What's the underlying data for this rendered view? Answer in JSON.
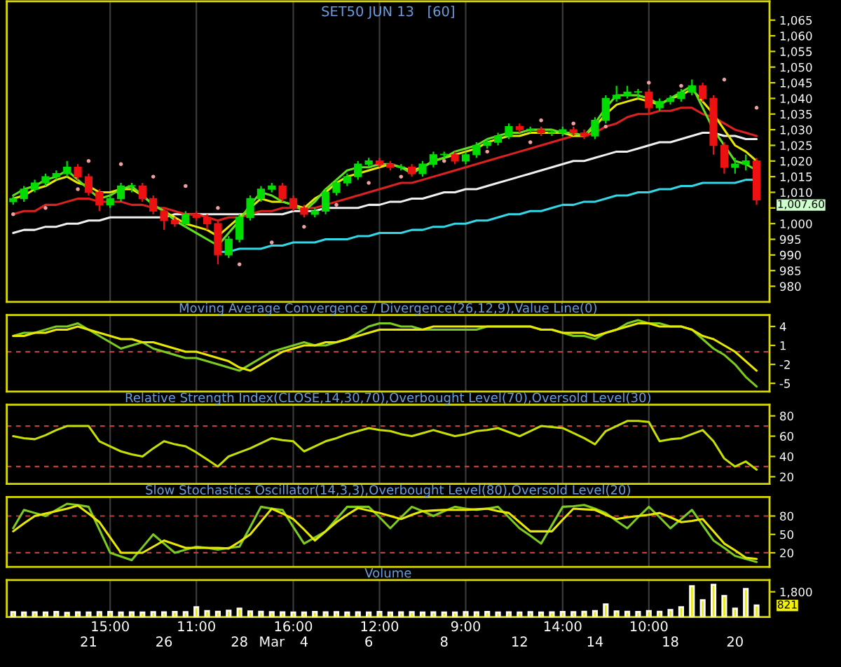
{
  "chart_data": [
    {
      "type": "candlestick",
      "title": "SET50 JUN 13   [60]",
      "categories": [
        null,
        null,
        null,
        null,
        null,
        null,
        null,
        null,
        null,
        null,
        null,
        null,
        null,
        null,
        null,
        null,
        null,
        null,
        null,
        null,
        null,
        null,
        null,
        null,
        null,
        null,
        null,
        null,
        null,
        null,
        null,
        null,
        null,
        null,
        null,
        null,
        null,
        null,
        null,
        null,
        null,
        null,
        null,
        null,
        null,
        null,
        null,
        null,
        null,
        null,
        null,
        null,
        null,
        null,
        null,
        null,
        null,
        null,
        null,
        null,
        null,
        null,
        null,
        null,
        null,
        null,
        null,
        null,
        null,
        null
      ],
      "ohlc": [
        [
          1007,
          1009,
          1006,
          1008
        ],
        [
          1008,
          1012,
          1007,
          1011
        ],
        [
          1011,
          1014,
          1010,
          1013
        ],
        [
          1013,
          1016,
          1012,
          1015
        ],
        [
          1015,
          1017,
          1014,
          1016
        ],
        [
          1016,
          1020,
          1015,
          1018
        ],
        [
          1018,
          1019,
          1014,
          1015
        ],
        [
          1015,
          1016,
          1009,
          1010
        ],
        [
          1010,
          1011,
          1004,
          1006
        ],
        [
          1006,
          1009,
          1005,
          1008
        ],
        [
          1008,
          1013,
          1007,
          1012
        ],
        [
          1012,
          1013,
          1010,
          1012
        ],
        [
          1012,
          1013,
          1007,
          1008
        ],
        [
          1008,
          1009,
          1003,
          1004
        ],
        [
          1004,
          1005,
          998,
          1001
        ],
        [
          1001,
          1002,
          999,
          1000
        ],
        [
          1000,
          1004,
          999,
          1003
        ],
        [
          1003,
          1004,
          1001,
          1002
        ],
        [
          1002,
          1003,
          998,
          1000
        ],
        [
          1000,
          1001,
          987,
          990
        ],
        [
          990,
          996,
          989,
          995
        ],
        [
          995,
          1003,
          994,
          1002
        ],
        [
          1002,
          1009,
          1001,
          1008
        ],
        [
          1008,
          1012,
          1007,
          1011
        ],
        [
          1011,
          1013,
          1010,
          1012
        ],
        [
          1012,
          1013,
          1007,
          1008
        ],
        [
          1008,
          1009,
          1004,
          1005
        ],
        [
          1005,
          1006,
          1002,
          1003
        ],
        [
          1003,
          1005,
          1002,
          1004
        ],
        [
          1004,
          1011,
          1003,
          1010
        ],
        [
          1010,
          1014,
          1009,
          1013
        ],
        [
          1013,
          1016,
          1012,
          1015
        ],
        [
          1015,
          1020,
          1014,
          1019
        ],
        [
          1019,
          1021,
          1018,
          1020
        ],
        [
          1020,
          1021,
          1018,
          1019
        ],
        [
          1019,
          1020,
          1017,
          1018
        ],
        [
          1018,
          1019,
          1017,
          1018
        ],
        [
          1018,
          1019,
          1015,
          1016
        ],
        [
          1016,
          1020,
          1015,
          1019
        ],
        [
          1019,
          1023,
          1018,
          1022
        ],
        [
          1022,
          1023,
          1021,
          1022
        ],
        [
          1022,
          1023,
          1019,
          1020
        ],
        [
          1020,
          1023,
          1019,
          1022
        ],
        [
          1022,
          1026,
          1021,
          1025
        ],
        [
          1025,
          1027,
          1024,
          1026
        ],
        [
          1026,
          1029,
          1025,
          1028
        ],
        [
          1028,
          1032,
          1027,
          1031
        ],
        [
          1031,
          1032,
          1029,
          1030
        ],
        [
          1030,
          1031,
          1029,
          1030
        ],
        [
          1030,
          1031,
          1028,
          1029
        ],
        [
          1029,
          1030,
          1028,
          1029
        ],
        [
          1029,
          1031,
          1028,
          1030
        ],
        [
          1030,
          1031,
          1028,
          1029
        ],
        [
          1029,
          1030,
          1027,
          1028
        ],
        [
          1028,
          1034,
          1027,
          1033
        ],
        [
          1033,
          1041,
          1032,
          1040
        ],
        [
          1040,
          1044,
          1039,
          1041
        ],
        [
          1041,
          1044,
          1040,
          1042
        ],
        [
          1042,
          1043,
          1040,
          1042
        ],
        [
          1042,
          1043,
          1035,
          1037
        ],
        [
          1037,
          1040,
          1036,
          1039
        ],
        [
          1039,
          1041,
          1038,
          1040
        ],
        [
          1040,
          1043,
          1039,
          1042
        ],
        [
          1042,
          1046,
          1041,
          1044
        ],
        [
          1044,
          1045,
          1039,
          1040
        ],
        [
          1040,
          1041,
          1022,
          1025
        ],
        [
          1025,
          1026,
          1016,
          1018
        ],
        [
          1018,
          1021,
          1016,
          1019
        ],
        [
          1019,
          1022,
          1017,
          1020
        ],
        [
          1020,
          1021,
          1006,
          1007.6
        ]
      ],
      "colors": [
        "#00dd00",
        "#00dd00",
        "#00dd00",
        "#00dd00",
        "#00dd00",
        "#00dd00",
        "#ee1111",
        "#ee1111",
        "#ee1111",
        "#00dd00",
        "#00dd00",
        "#00dd00",
        "#ee1111",
        "#ee1111",
        "#ee1111",
        "#ee1111",
        "#00dd00",
        "#ee1111",
        "#ee1111",
        "#ee1111",
        "#00dd00",
        "#00dd00",
        "#00dd00",
        "#00dd00",
        "#00dd00",
        "#ee1111",
        "#ee1111",
        "#ee1111",
        "#00dd00",
        "#00dd00",
        "#00dd00",
        "#00dd00",
        "#00dd00",
        "#00dd00",
        "#ee1111",
        "#ee1111",
        "#00dd00",
        "#ee1111",
        "#00dd00",
        "#00dd00",
        "#00dd00",
        "#ee1111",
        "#00dd00",
        "#00dd00",
        "#00dd00",
        "#00dd00",
        "#00dd00",
        "#ee1111",
        "#00dd00",
        "#ee1111",
        "#00dd00",
        "#00dd00",
        "#ee1111",
        "#ee1111",
        "#00dd00",
        "#00dd00",
        "#00dd00",
        "#00dd00",
        "#00dd00",
        "#ee1111",
        "#00dd00",
        "#00dd00",
        "#00dd00",
        "#00dd00",
        "#ee1111",
        "#ee1111",
        "#ee1111",
        "#00dd00",
        "#00dd00",
        "#ee1111"
      ],
      "series": [
        {
          "type": "line",
          "color": "#f0f0f0",
          "values": [
            997,
            998,
            998,
            999,
            999,
            1000,
            1000,
            1001,
            1001,
            1002,
            1002,
            1002,
            1002,
            1002,
            1002,
            1003,
            1003,
            1003,
            1003,
            1003,
            1003,
            1003,
            1003,
            1003,
            1003,
            1003,
            1004,
            1004,
            1004,
            1005,
            1005,
            1005,
            1005,
            1006,
            1006,
            1007,
            1007,
            1008,
            1008,
            1009,
            1010,
            1010,
            1011,
            1011,
            1012,
            1013,
            1014,
            1015,
            1016,
            1017,
            1018,
            1019,
            1020,
            1020,
            1021,
            1022,
            1023,
            1023,
            1024,
            1025,
            1026,
            1026,
            1027,
            1028,
            1029,
            1029,
            1028,
            1028,
            1027,
            1027
          ]
        },
        {
          "type": "line",
          "color": "#dd2020",
          "values": [
            1003,
            1004,
            1004,
            1006,
            1006,
            1007,
            1008,
            1008,
            1007,
            1007,
            1007,
            1006,
            1006,
            1005,
            1005,
            1004,
            1003,
            1003,
            1002,
            1001,
            1002,
            1002,
            1003,
            1004,
            1004,
            1005,
            1005,
            1005,
            1005,
            1006,
            1007,
            1008,
            1009,
            1010,
            1011,
            1012,
            1013,
            1013,
            1014,
            1015,
            1016,
            1017,
            1018,
            1019,
            1020,
            1021,
            1022,
            1023,
            1024,
            1025,
            1026,
            1027,
            1028,
            1028,
            1029,
            1031,
            1032,
            1034,
            1035,
            1035,
            1036,
            1036,
            1037,
            1037,
            1035,
            1034,
            1032,
            1030,
            1029,
            1028
          ]
        },
        {
          "type": "line",
          "color": "#e8e800",
          "values": [
            1008,
            1009,
            1011,
            1012,
            1014,
            1015,
            1013,
            1012,
            1010,
            1010,
            1011,
            1011,
            1009,
            1006,
            1004,
            1002,
            1000,
            999,
            998,
            996,
            999,
            1002,
            1005,
            1008,
            1007,
            1007,
            1006,
            1005,
            1008,
            1010,
            1013,
            1015,
            1016,
            1017,
            1018,
            1019,
            1018,
            1017,
            1018,
            1020,
            1021,
            1022,
            1023,
            1024,
            1026,
            1027,
            1028,
            1028,
            1029,
            1029,
            1029,
            1029,
            1028,
            1028,
            1031,
            1035,
            1038,
            1039,
            1040,
            1039,
            1038,
            1040,
            1041,
            1043,
            1039,
            1035,
            1030,
            1025,
            1023,
            1020
          ]
        },
        {
          "type": "line",
          "color": "#60e020",
          "values": [
            1009,
            1011,
            1012,
            1014,
            1015,
            1017,
            1014,
            1011,
            1008,
            1009,
            1011,
            1012,
            1009,
            1006,
            1004,
            1001,
            999,
            997,
            995,
            993,
            997,
            1001,
            1006,
            1010,
            1009,
            1007,
            1006,
            1004,
            1007,
            1011,
            1014,
            1017,
            1018,
            1018,
            1019,
            1019,
            1018,
            1016,
            1018,
            1020,
            1021,
            1023,
            1024,
            1025,
            1027,
            1028,
            1029,
            1029,
            1030,
            1030,
            1030,
            1029,
            1029,
            1028,
            1032,
            1037,
            1041,
            1041,
            1041,
            1040,
            1038,
            1040,
            1042,
            1044,
            1037,
            1030,
            1025,
            1020,
            1019,
            1017
          ]
        },
        {
          "type": "line",
          "color": "#30d8e8",
          "values": [
            null,
            null,
            null,
            null,
            null,
            null,
            null,
            null,
            null,
            null,
            null,
            null,
            null,
            null,
            null,
            null,
            null,
            null,
            null,
            991,
            991,
            992,
            992,
            992,
            993,
            993,
            994,
            994,
            994,
            995,
            995,
            995,
            996,
            996,
            997,
            997,
            997,
            998,
            998,
            999,
            999,
            1000,
            1000,
            1001,
            1001,
            1002,
            1003,
            1003,
            1004,
            1004,
            1005,
            1006,
            1006,
            1007,
            1007,
            1008,
            1009,
            1009,
            1010,
            1010,
            1011,
            1011,
            1012,
            1012,
            1013,
            1013,
            1013,
            1013,
            1014,
            1014
          ]
        },
        {
          "type": "scatter",
          "color": "#f0a0a0",
          "values": [
            1003,
            null,
            null,
            1005,
            null,
            null,
            1011,
            1020,
            null,
            null,
            1019,
            null,
            null,
            1015,
            null,
            null,
            1012,
            null,
            null,
            1005,
            null,
            987,
            null,
            null,
            994,
            null,
            null,
            999,
            null,
            null,
            1006,
            null,
            null,
            1013,
            null,
            null,
            1015,
            null,
            null,
            null,
            1020,
            null,
            null,
            null,
            1023,
            null,
            null,
            null,
            1026,
            1033,
            null,
            null,
            1032,
            null,
            null,
            1031,
            null,
            null,
            null,
            1045,
            null,
            null,
            1044,
            null,
            null,
            null,
            1046,
            null,
            null,
            1037
          ]
        }
      ],
      "annotations": [
        "1,007.60"
      ],
      "ylim": [
        975,
        1071
      ],
      "yticks": [
        980,
        985,
        990,
        995,
        {
          "value": 1000,
          "label": "1,000"
        },
        {
          "value": 1005,
          "label": null
        },
        {
          "value": 1010,
          "label": "1,010"
        },
        {
          "value": 1015,
          "label": "1,015"
        },
        {
          "value": 1020,
          "label": "1,020"
        },
        {
          "value": 1025,
          "label": "1,025"
        },
        {
          "value": 1030,
          "label": "1,030"
        },
        {
          "value": 1035,
          "label": "1,035"
        },
        {
          "value": 1040,
          "label": "1,040"
        },
        {
          "value": 1045,
          "label": "1,045"
        },
        {
          "value": 1050,
          "label": "1,050"
        },
        {
          "value": 1055,
          "label": "1,055"
        },
        {
          "value": 1060,
          "label": "1,060"
        },
        {
          "value": 1065,
          "label": "1,065"
        }
      ],
      "grid": "x",
      "tick_labels": "y"
    },
    {
      "type": "line",
      "title": "Moving Average Convergence / Divergence(26,12,9),Value Line(0)",
      "categories": [
        null,
        null,
        null,
        null,
        null,
        null,
        null,
        null,
        null,
        null,
        null,
        null,
        null,
        null,
        null,
        null,
        null,
        null,
        null,
        null,
        null,
        null,
        null,
        null,
        null,
        null,
        null,
        null,
        null,
        null,
        null,
        null,
        null,
        null,
        null,
        null,
        null,
        null,
        null,
        null,
        null,
        null,
        null,
        null,
        null,
        null,
        null,
        null,
        null,
        null,
        null,
        null,
        null,
        null,
        null,
        null,
        null,
        null,
        null,
        null,
        null,
        null,
        null,
        null,
        null,
        null,
        null,
        null,
        null,
        null
      ],
      "series": [
        {
          "color": "#7ccc20",
          "values": [
            2.5,
            3,
            3,
            3.5,
            4,
            4,
            4.5,
            3.5,
            2.5,
            1.5,
            0.5,
            1,
            1.5,
            0.5,
            0,
            -0.5,
            -1,
            -1,
            -1.5,
            -2,
            -2.5,
            -3,
            -2,
            -1,
            0,
            0.5,
            1,
            1.5,
            1,
            1,
            1.5,
            2,
            3,
            4,
            4.5,
            4.5,
            4,
            4,
            3.5,
            3.5,
            3.5,
            3.5,
            3.5,
            3.5,
            4,
            4,
            4,
            4,
            4,
            3.5,
            3.5,
            3,
            2.5,
            2.5,
            2,
            3,
            3.5,
            4.5,
            5,
            4.5,
            4.5,
            4,
            4,
            3.5,
            2,
            0.5,
            -0.5,
            -2,
            -4,
            -5.5
          ]
        },
        {
          "color": "#e8e800",
          "values": [
            2.5,
            2.5,
            3,
            3,
            3.5,
            3.5,
            4,
            3.5,
            3,
            2.5,
            2,
            2,
            1.5,
            1.5,
            1,
            0.5,
            0,
            0,
            -0.5,
            -1,
            -1.5,
            -2.5,
            -3,
            -2,
            -1,
            0,
            0.5,
            1,
            1,
            1.5,
            1.5,
            2,
            2.5,
            3,
            3.5,
            3.5,
            3.5,
            3.5,
            3.5,
            4,
            4,
            4,
            4,
            4,
            4,
            4,
            4,
            4,
            4,
            3.5,
            3.5,
            3,
            3,
            3,
            2.5,
            3,
            3.5,
            4,
            4.5,
            4.5,
            4,
            4,
            4,
            3.5,
            2.5,
            2,
            1,
            0,
            -1.5,
            -3
          ]
        }
      ],
      "ref_lines": [
        {
          "axis": "y",
          "value": 0,
          "color": "#c04040",
          "line_style": "dashed"
        }
      ],
      "ylim": [
        -6.3,
        5.8
      ],
      "yticks": [
        4,
        1,
        -2,
        -5
      ],
      "grid": "x",
      "tick_labels": "y"
    },
    {
      "type": "line",
      "title": "Relative Strength Index(CLOSE,14,30,70),Overbought Level(70),Oversold Level(30)",
      "categories": [
        null,
        null,
        null,
        null,
        null,
        null,
        null,
        null,
        null,
        null,
        null,
        null,
        null,
        null,
        null,
        null,
        null,
        null,
        null,
        null,
        null,
        null,
        null,
        null,
        null,
        null,
        null,
        null,
        null,
        null,
        null,
        null,
        null,
        null,
        null,
        null,
        null,
        null,
        null,
        null,
        null,
        null,
        null,
        null,
        null,
        null,
        null,
        null,
        null,
        null,
        null,
        null,
        null,
        null,
        null,
        null,
        null,
        null,
        null,
        null,
        null,
        null,
        null,
        null,
        null,
        null,
        null,
        null,
        null,
        null
      ],
      "series": [
        {
          "color": "#c8e000",
          "values": [
            60,
            58,
            57,
            61,
            66,
            70,
            70,
            70,
            55,
            50,
            45,
            42,
            40,
            48,
            55,
            52,
            50,
            44,
            37,
            30,
            40,
            44,
            48,
            53,
            58,
            56,
            55,
            45,
            50,
            55,
            58,
            62,
            65,
            68,
            66,
            65,
            62,
            60,
            63,
            66,
            63,
            60,
            62,
            65,
            66,
            68,
            64,
            60,
            65,
            70,
            69,
            68,
            63,
            58,
            52,
            65,
            70,
            75,
            75,
            74,
            55,
            57,
            58,
            62,
            66,
            55,
            38,
            30,
            35,
            27
          ]
        }
      ],
      "ref_lines": [
        {
          "axis": "y",
          "value": 70,
          "color": "#c04040",
          "line_style": "dashed"
        },
        {
          "axis": "y",
          "value": 30,
          "color": "#c04040",
          "line_style": "dashed"
        }
      ],
      "ylim": [
        13,
        91
      ],
      "yticks": [
        80,
        60,
        40,
        20
      ],
      "grid": "x",
      "tick_labels": "y"
    },
    {
      "type": "line",
      "title": "Slow Stochastics Oscillator(14,3,3),Overbought Level(80),Oversold Level(20)",
      "categories": [
        null,
        null,
        null,
        null,
        null,
        null,
        null,
        null,
        null,
        null,
        null,
        null,
        null,
        null,
        null,
        null,
        null,
        null,
        null,
        null,
        null,
        null,
        null,
        null,
        null,
        null,
        null,
        null,
        null,
        null,
        null,
        null,
        null,
        null,
        null,
        null,
        null,
        null,
        null,
        null,
        null,
        null,
        null,
        null,
        null,
        null,
        null,
        null,
        null,
        null,
        null,
        null,
        null,
        null,
        null,
        null,
        null,
        null,
        null,
        null,
        null,
        null,
        null,
        null,
        null,
        null,
        null,
        null,
        null,
        null
      ],
      "series": [
        {
          "color": "#7ccc20",
          "values": [
            60,
            90,
            85,
            80,
            90,
            100,
            98,
            95,
            58,
            20,
            14,
            8,
            29,
            50,
            35,
            20,
            25,
            30,
            28,
            25,
            28,
            30,
            62,
            95,
            92,
            90,
            62,
            35,
            45,
            55,
            75,
            95,
            95,
            95,
            78,
            60,
            78,
            95,
            88,
            80,
            88,
            95,
            92,
            90,
            92,
            95,
            78,
            60,
            48,
            35,
            65,
            95,
            96,
            98,
            92,
            85,
            72,
            60,
            78,
            95,
            78,
            60,
            75,
            90,
            65,
            40,
            28,
            15,
            10,
            5
          ]
        },
        {
          "color": "#e8e800",
          "values": [
            55,
            68,
            80,
            84,
            88,
            92,
            97,
            84,
            70,
            45,
            20,
            20,
            20,
            30,
            40,
            34,
            28,
            28,
            28,
            28,
            27,
            38,
            50,
            71,
            92,
            84,
            75,
            58,
            40,
            55,
            70,
            82,
            93,
            89,
            85,
            80,
            75,
            82,
            88,
            89,
            90,
            90,
            90,
            91,
            92,
            88,
            85,
            70,
            55,
            55,
            55,
            74,
            92,
            91,
            90,
            82,
            75,
            78,
            80,
            82,
            85,
            78,
            70,
            72,
            75,
            55,
            35,
            24,
            12,
            10
          ]
        }
      ],
      "ref_lines": [
        {
          "axis": "y",
          "value": 80,
          "color": "#c04040",
          "line_style": "dashed"
        },
        {
          "axis": "y",
          "value": 20,
          "color": "#c04040",
          "line_style": "dashed"
        }
      ],
      "ylim": [
        -3,
        111
      ],
      "yticks": [
        80,
        50,
        20
      ],
      "grid": "x",
      "tick_labels": "y"
    },
    {
      "type": "bar",
      "title": "Volume",
      "categories": [
        null,
        null,
        null,
        null,
        null,
        null,
        null,
        "\n21",
        null,
        "15:00",
        null,
        null,
        null,
        null,
        "\n26",
        null,
        null,
        "11:00",
        null,
        null,
        null,
        "\n28",
        null,
        null,
        "\nMar",
        null,
        "16:00",
        "\n4",
        null,
        null,
        null,
        null,
        null,
        "\n6",
        "12:00",
        null,
        null,
        null,
        null,
        null,
        "\n8",
        null,
        "9:00",
        null,
        null,
        null,
        null,
        "\n12",
        null,
        null,
        null,
        "14:00",
        null,
        null,
        "\n14",
        null,
        null,
        null,
        null,
        "10:00",
        null,
        "\n18",
        null,
        null,
        null,
        null,
        null,
        "\n20",
        null,
        null
      ],
      "values": [
        350,
        320,
        340,
        330,
        360,
        300,
        340,
        330,
        350,
        360,
        330,
        340,
        320,
        350,
        340,
        360,
        350,
        700,
        420,
        380,
        450,
        600,
        400,
        380,
        350,
        340,
        330,
        320,
        360,
        340,
        350,
        330,
        340,
        320,
        360,
        330,
        340,
        350,
        330,
        340,
        320,
        330,
        350,
        340,
        360,
        330,
        340,
        320,
        350,
        330,
        340,
        360,
        350,
        370,
        420,
        900,
        400,
        380,
        360,
        420,
        380,
        500,
        700,
        2200,
        1200,
        2300,
        1500,
        600,
        2000,
        821
      ],
      "color": "#e8e800",
      "annotations": [
        "821"
      ],
      "ylim": [
        0,
        2640
      ],
      "yticks": [
        {
          "value": 1800,
          "label": "1,800"
        }
      ],
      "grid": "x"
    }
  ]
}
